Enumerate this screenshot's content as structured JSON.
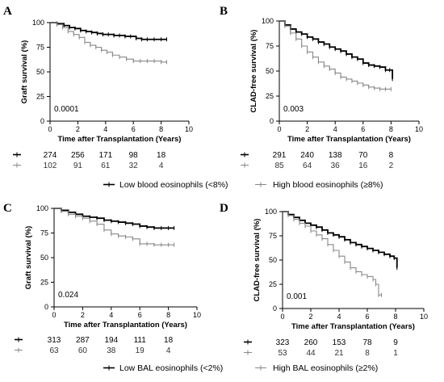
{
  "chart_data": [
    {
      "type": "line",
      "panel": "A",
      "ylabel": "Graft survival (%)",
      "xlabel": "Time after Transplantation (Years)",
      "xlim": [
        0,
        10
      ],
      "ylim": [
        0,
        100
      ],
      "x_ticks": [
        0,
        2,
        4,
        6,
        8,
        10
      ],
      "y_ticks": [
        0,
        25,
        50,
        75,
        100
      ],
      "p_value": "0.0001",
      "risk_times": [
        0,
        2,
        4,
        6,
        8
      ],
      "series": [
        {
          "x": [
            0,
            0.5,
            1,
            1.4,
            1.8,
            2.2,
            2.6,
            3,
            3.4,
            3.8,
            4.2,
            4.6,
            5,
            5.4,
            5.8,
            6.2,
            6.6,
            7,
            7.5,
            8,
            8.4
          ],
          "y": [
            100,
            99,
            97,
            95,
            94,
            92,
            91,
            90,
            89,
            88,
            88,
            87,
            87,
            86,
            86,
            84,
            83,
            83,
            83,
            83,
            83
          ],
          "color": "#000000",
          "risk": [
            "274",
            "256",
            "171",
            "98",
            "18"
          ]
        },
        {
          "x": [
            0,
            0.5,
            0.9,
            1.3,
            1.7,
            2.1,
            2.5,
            2.9,
            3.3,
            3.7,
            4.1,
            4.5,
            5,
            5.5,
            6,
            6.5,
            7,
            7.5,
            8,
            8.4
          ],
          "y": [
            100,
            98,
            95,
            91,
            88,
            85,
            80,
            77,
            75,
            72,
            70,
            67,
            65,
            63,
            61,
            61,
            61,
            61,
            60,
            60
          ],
          "color": "#888888",
          "risk": [
            "102",
            "91",
            "61",
            "32",
            "4"
          ]
        }
      ]
    },
    {
      "type": "line",
      "panel": "B",
      "ylabel": "CLAD-free survival (%)",
      "xlabel": "Time after Transplantation (Years)",
      "xlim": [
        0,
        10
      ],
      "ylim": [
        0,
        100
      ],
      "x_ticks": [
        0,
        2,
        4,
        6,
        8,
        10
      ],
      "y_ticks": [
        0,
        25,
        50,
        75,
        100
      ],
      "p_value": "0.003",
      "risk_times": [
        0,
        2,
        4,
        6,
        8
      ],
      "series": [
        {
          "x": [
            0,
            0.4,
            0.8,
            1.2,
            1.6,
            2,
            2.4,
            2.8,
            3.2,
            3.6,
            4,
            4.4,
            4.8,
            5.2,
            5.6,
            6,
            6.4,
            6.8,
            7.2,
            7.6,
            7.9,
            8.1
          ],
          "y": [
            100,
            96,
            92,
            89,
            87,
            84,
            82,
            79,
            77,
            74,
            72,
            70,
            67,
            64,
            62,
            58,
            56,
            55,
            54,
            51,
            51,
            42
          ],
          "color": "#000000",
          "risk": [
            "291",
            "240",
            "138",
            "70",
            "8"
          ]
        },
        {
          "x": [
            0,
            0.4,
            0.8,
            1.2,
            1.6,
            2,
            2.4,
            2.8,
            3.2,
            3.6,
            4,
            4.4,
            4.8,
            5.2,
            5.6,
            6,
            6.4,
            6.8,
            7.2,
            7.6,
            8
          ],
          "y": [
            100,
            95,
            88,
            82,
            75,
            69,
            64,
            59,
            55,
            52,
            48,
            44,
            42,
            40,
            38,
            36,
            34,
            33,
            32,
            32,
            32
          ],
          "color": "#888888",
          "risk": [
            "85",
            "64",
            "36",
            "16",
            "2"
          ]
        }
      ]
    },
    {
      "type": "line",
      "panel": "C",
      "ylabel": "Graft survival (%)",
      "xlabel": "Time after Transplantation (Years)",
      "xlim": [
        0,
        10
      ],
      "ylim": [
        0,
        100
      ],
      "x_ticks": [
        0,
        2,
        4,
        6,
        8,
        10
      ],
      "y_ticks": [
        0,
        25,
        50,
        75,
        100
      ],
      "p_value": "0.024",
      "risk_times": [
        0,
        2,
        4,
        6,
        8
      ],
      "series": [
        {
          "x": [
            0,
            0.5,
            1,
            1.5,
            2,
            2.5,
            3,
            3.5,
            4,
            4.5,
            5,
            5.5,
            6,
            6.5,
            7,
            7.5,
            8,
            8.4
          ],
          "y": [
            100,
            98,
            96,
            94,
            92,
            91,
            90,
            88,
            87,
            86,
            85,
            84,
            82,
            81,
            80,
            80,
            80,
            80
          ],
          "color": "#000000",
          "risk": [
            "313",
            "287",
            "194",
            "111",
            "18"
          ]
        },
        {
          "x": [
            0,
            0.5,
            1,
            1.5,
            2,
            2.5,
            3,
            3.5,
            4,
            4.5,
            5,
            5.5,
            6,
            6.5,
            7,
            7.5,
            8,
            8.4
          ],
          "y": [
            100,
            97,
            94,
            92,
            90,
            87,
            84,
            78,
            74,
            72,
            71,
            69,
            64,
            64,
            63,
            63,
            63,
            63
          ],
          "color": "#888888",
          "risk": [
            "63",
            "60",
            "38",
            "19",
            "4"
          ]
        }
      ]
    },
    {
      "type": "line",
      "panel": "D",
      "ylabel": "CLAD-free survival (%)",
      "xlabel": "Time after Transplantation (Years)",
      "xlim": [
        0,
        10
      ],
      "ylim": [
        0,
        100
      ],
      "x_ticks": [
        0,
        2,
        4,
        6,
        8,
        10
      ],
      "y_ticks": [
        0,
        25,
        50,
        75,
        100
      ],
      "p_value": "0.001",
      "risk_times": [
        0,
        2,
        4,
        6,
        8
      ],
      "series": [
        {
          "x": [
            0,
            0.4,
            0.8,
            1.2,
            1.6,
            2,
            2.4,
            2.8,
            3.2,
            3.6,
            4,
            4.4,
            4.8,
            5.2,
            5.6,
            6,
            6.4,
            6.8,
            7.2,
            7.6,
            7.9,
            8.1
          ],
          "y": [
            100,
            97,
            94,
            91,
            88,
            86,
            84,
            81,
            78,
            76,
            74,
            71,
            68,
            66,
            64,
            62,
            60,
            58,
            56,
            54,
            52,
            42
          ],
          "color": "#000000",
          "risk": [
            "323",
            "260",
            "153",
            "78",
            "9"
          ]
        },
        {
          "x": [
            0,
            0.4,
            0.8,
            1.2,
            1.6,
            2,
            2.4,
            2.8,
            3.2,
            3.6,
            4,
            4.4,
            4.8,
            5.2,
            5.6,
            6,
            6.4,
            6.6,
            6.8,
            7
          ],
          "y": [
            100,
            96,
            92,
            88,
            85,
            80,
            76,
            72,
            66,
            60,
            54,
            48,
            42,
            38,
            35,
            33,
            30,
            25,
            14,
            14
          ],
          "color": "#888888",
          "risk": [
            "53",
            "44",
            "21",
            "8",
            "1"
          ]
        }
      ]
    }
  ],
  "legends": [
    {
      "items": [
        {
          "label": "Low blood eosinophils (<8%)",
          "color": "#000000"
        },
        {
          "label": "High blood eosinophils (≥8%)",
          "color": "#888888"
        }
      ]
    },
    {
      "items": [
        {
          "label": "Low BAL eosinophils (<2%)",
          "color": "#000000"
        },
        {
          "label": "High BAL eosinophils (≥2%)",
          "color": "#888888"
        }
      ]
    }
  ]
}
